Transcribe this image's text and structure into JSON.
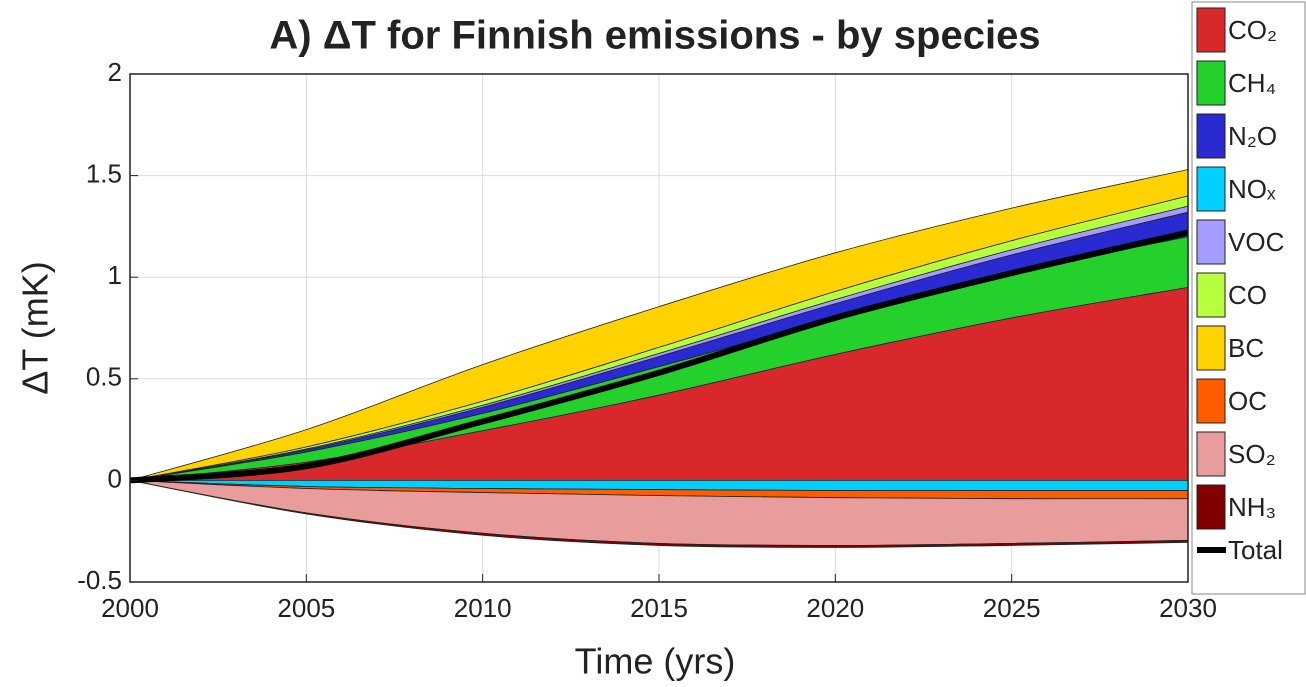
{
  "chart_data": {
    "type": "area",
    "title": "A) ΔT for Finnish emissions - by species",
    "xlabel": "Time (yrs)",
    "ylabel": "ΔT (mK)",
    "x": [
      2000,
      2005,
      2010,
      2015,
      2020,
      2025,
      2030
    ],
    "xlim": [
      2000,
      2030
    ],
    "xticks": [
      2000,
      2005,
      2010,
      2015,
      2020,
      2025,
      2030
    ],
    "ylim": [
      -0.5,
      2
    ],
    "yticks": [
      -0.5,
      0,
      0.5,
      1,
      1.5,
      2
    ],
    "grid": true,
    "stacked": true,
    "legend": "outside right",
    "series": [
      {
        "name": "CO₂",
        "color": "#d8282c",
        "values": [
          0,
          0.09,
          0.245,
          0.42,
          0.62,
          0.8,
          0.95
        ]
      },
      {
        "name": "CH₄",
        "color": "#24d12c",
        "values": [
          0,
          0.05,
          0.085,
          0.14,
          0.18,
          0.22,
          0.25
        ]
      },
      {
        "name": "N₂O",
        "color": "#2a2ad2",
        "values": [
          0,
          0.01,
          0.03,
          0.05,
          0.07,
          0.09,
          0.12
        ]
      },
      {
        "name": "NOₓ",
        "color": "#00d0ff",
        "values": [
          0,
          -0.03,
          -0.04,
          -0.045,
          -0.05,
          -0.05,
          -0.05
        ]
      },
      {
        "name": "VOC",
        "color": "#a59cff",
        "values": [
          0,
          0.005,
          0.01,
          0.015,
          0.02,
          0.025,
          0.03
        ]
      },
      {
        "name": "CO",
        "color": "#b6ff3c",
        "values": [
          0,
          0.01,
          0.02,
          0.03,
          0.04,
          0.045,
          0.05
        ]
      },
      {
        "name": "BC",
        "color": "#ffd200",
        "values": [
          0,
          0.085,
          0.18,
          0.2,
          0.19,
          0.16,
          0.13
        ]
      },
      {
        "name": "OC",
        "color": "#ff5c00",
        "values": [
          0,
          -0.01,
          -0.02,
          -0.03,
          -0.035,
          -0.04,
          -0.04
        ]
      },
      {
        "name": "SO₂",
        "color": "#e89c9c",
        "values": [
          0,
          -0.12,
          -0.2,
          -0.235,
          -0.235,
          -0.22,
          -0.205
        ]
      },
      {
        "name": "NH₃",
        "color": "#800000",
        "values": [
          0,
          -0.005,
          -0.01,
          -0.01,
          -0.01,
          -0.01,
          -0.01
        ]
      }
    ],
    "total": {
      "name": "Total",
      "color": "#000000",
      "values": [
        0,
        0.07,
        0.29,
        0.53,
        0.8,
        1.02,
        1.22
      ]
    }
  }
}
